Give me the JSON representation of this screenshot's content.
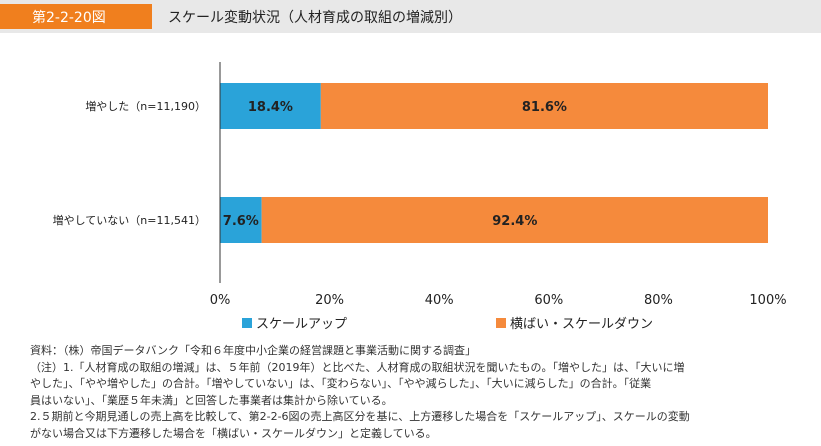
{
  "header": {
    "figure_number": "第2-2-20図",
    "title": "スケール変動状況（人材育成の取組の増減別）"
  },
  "colors": {
    "header_bg": "#e8e8e8",
    "figure_number_bg": "#f07f1e",
    "scale_up": "#2aa3d9",
    "flat_or_down": "#f58a3c"
  },
  "chart_data": {
    "type": "bar",
    "orientation": "horizontal",
    "stacked": true,
    "percent_stacked": true,
    "categories": [
      "増やした（n=11,190）",
      "増やしていない（n=11,541）"
    ],
    "series": [
      {
        "name": "スケールアップ",
        "values": [
          18.4,
          7.6
        ],
        "labels": [
          "18.4%",
          "7.6%"
        ],
        "color": "#2aa3d9"
      },
      {
        "name": "横ばい・スケールダウン",
        "values": [
          81.6,
          92.4
        ],
        "labels": [
          "81.6%",
          "92.4%"
        ],
        "color": "#f58a3c"
      }
    ],
    "xlim": [
      0,
      100
    ],
    "x_ticks": [
      "0%",
      "20%",
      "40%",
      "60%",
      "80%",
      "100%"
    ],
    "legend_position": "bottom",
    "grid": false
  },
  "notes": [
    "資料：（株）帝国データバンク「令和６年度中小企業の経営課題と事業活動に関する調査」",
    "（注）1.「人材育成の取組の増減」は、５年前（2019年）と比べた、人材育成の取組状況を聞いたもの。「増やした」は、「大いに増",
    "やした」、「やや増やした」の合計。「増やしていない」は、「変わらない」、「やや減らした」、「大いに減らした」の合計。「従業",
    "員はいない」、「業歴５年未満」と回答した事業者は集計から除いている。",
    "2.５期前と今期見通しの売上高を比較して、第2-2-6図の売上高区分を基に、上方遷移した場合を「スケールアップ」、スケールの変動",
    "がない場合又は下方遷移した場合を「横ばい・スケールダウン」と定義している。"
  ]
}
